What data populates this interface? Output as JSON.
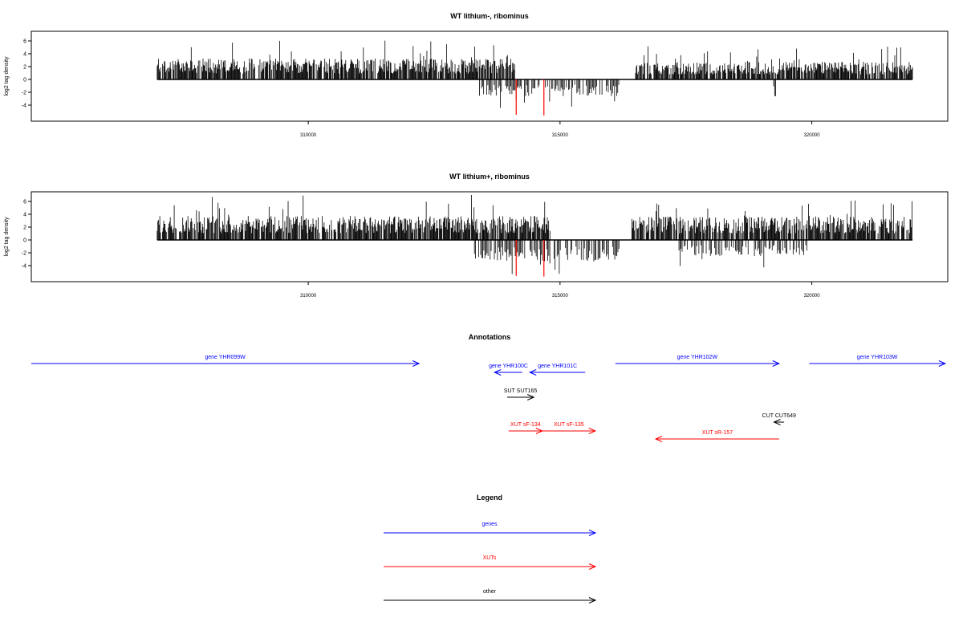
{
  "colors": {
    "gene": "#0000ff",
    "xut": "#ff0000",
    "other": "#000000",
    "signal": "#000000",
    "highlight": "#ff0000"
  },
  "chart_data": [
    {
      "type": "bar",
      "title": "WT lithium-, ribominus",
      "ylabel": "log2 tag density",
      "xlim": [
        304500,
        322700
      ],
      "ylim": [
        -6.5,
        7.5
      ],
      "x_ticks": [
        310000,
        315000,
        320000
      ],
      "y_ticks": [
        -4,
        -2,
        0,
        2,
        4,
        6
      ],
      "data_range": [
        307000,
        322000
      ],
      "positive_segments": [
        {
          "start": 307000,
          "end": 314100,
          "level": 2.6,
          "max": 6.1
        },
        {
          "start": 316500,
          "end": 322000,
          "level": 2.2,
          "max": 5.2
        }
      ],
      "negative_segments": [
        {
          "start": 313400,
          "end": 316200,
          "level": -2.0,
          "min": -4.5
        },
        {
          "start": 319200,
          "end": 319300,
          "level": -2.5,
          "min": -2.6
        }
      ],
      "highlighted_bars": [
        {
          "x": 314130,
          "value": -5.5
        },
        {
          "x": 314680,
          "value": -5.6
        }
      ]
    },
    {
      "type": "bar",
      "title": "WT lithium+, ribominus",
      "ylabel": "log2 tag density",
      "xlim": [
        304500,
        322700
      ],
      "ylim": [
        -6.5,
        7.5
      ],
      "x_ticks": [
        310000,
        315000,
        320000
      ],
      "y_ticks": [
        -4,
        -2,
        0,
        2,
        4,
        6
      ],
      "data_range": [
        307000,
        322000
      ],
      "positive_segments": [
        {
          "start": 307000,
          "end": 314800,
          "level": 3.0,
          "max": 7.0
        },
        {
          "start": 316400,
          "end": 322000,
          "level": 2.9,
          "max": 6.5
        }
      ],
      "negative_segments": [
        {
          "start": 313300,
          "end": 316200,
          "level": -2.6,
          "min": -5.6
        },
        {
          "start": 317300,
          "end": 319900,
          "level": -2.0,
          "min": -4.6
        }
      ],
      "highlighted_bars": [
        {
          "x": 314130,
          "value": -5.6
        },
        {
          "x": 314680,
          "value": -5.7
        }
      ]
    }
  ],
  "annotations": {
    "title": "Annotations",
    "features": [
      {
        "label": "gene YHR099W",
        "category": "gene",
        "start": 304500,
        "end": 312200,
        "strand": "+"
      },
      {
        "label": "gene YHR100C",
        "category": "gene",
        "start": 313700,
        "end": 314250,
        "strand": "-"
      },
      {
        "label": "gene YHR101C",
        "category": "gene",
        "start": 314400,
        "end": 315500,
        "strand": "-"
      },
      {
        "label": "gene YHR102W",
        "category": "gene",
        "start": 316100,
        "end": 319350,
        "strand": "+"
      },
      {
        "label": "gene YHR103W",
        "category": "gene",
        "start": 319950,
        "end": 322650,
        "strand": "+"
      },
      {
        "label": "SUT SUT165",
        "category": "other",
        "start": 313950,
        "end": 314480,
        "strand": "+"
      },
      {
        "label": "CUT CUT649",
        "category": "other",
        "start": 319250,
        "end": 319450,
        "strand": "-"
      },
      {
        "label": "XUT sF-134",
        "category": "xut",
        "start": 313980,
        "end": 314650,
        "strand": "+"
      },
      {
        "label": "XUT sF-135",
        "category": "xut",
        "start": 314650,
        "end": 315700,
        "strand": "+"
      },
      {
        "label": "XUT sR-157",
        "category": "xut",
        "start": 316900,
        "end": 319350,
        "strand": "-"
      }
    ]
  },
  "legend": {
    "title": "Legend",
    "items": [
      {
        "label": "genes",
        "category": "gene"
      },
      {
        "label": "XUTs",
        "category": "xut"
      },
      {
        "label": "other",
        "category": "other"
      }
    ]
  }
}
